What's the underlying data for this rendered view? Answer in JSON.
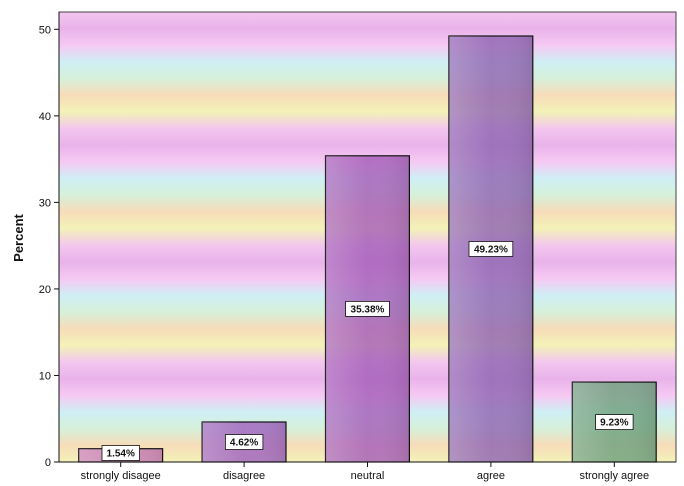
{
  "chart_data": {
    "type": "bar",
    "categories": [
      "strongly disagee",
      "disagree",
      "neutral",
      "agree",
      "strongly agree"
    ],
    "values": [
      1.54,
      4.62,
      35.38,
      49.23,
      9.23
    ],
    "data_labels": [
      "1.54%",
      "4.62%",
      "35.38%",
      "49.23%",
      "9.23%"
    ],
    "title": "",
    "xlabel": "",
    "ylabel": "Percent",
    "ylim": [
      0,
      52
    ],
    "yticks": [
      0,
      10,
      20,
      30,
      40,
      50
    ],
    "ytick_labels": [
      "0",
      "10",
      "20",
      "30",
      "40",
      "50"
    ],
    "grid": false,
    "legend": "none",
    "colors": {
      "background_stripes": [
        "#f3c6ef",
        "#f7dcb9",
        "#cfeff5",
        "#e9b3ea",
        "#f3f2b8",
        "#d6f0d9",
        "#f6c9f3"
      ],
      "bar_fills": [
        "#c77ab7",
        "#9f62bf",
        "#a55db8",
        "#8f64b2",
        "#6ea07d"
      ],
      "bar_stroke": "#111111"
    }
  }
}
